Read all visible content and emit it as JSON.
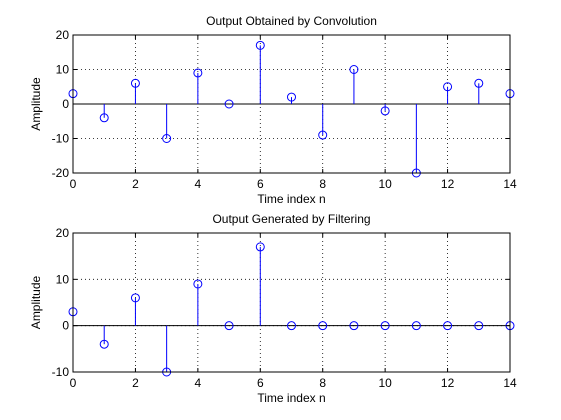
{
  "chart_data": [
    {
      "type": "stem",
      "title": "Output Obtained by Convolution",
      "xlabel": "Time index n",
      "ylabel": "Amplitude",
      "xlim": [
        0,
        14
      ],
      "ylim": [
        -20,
        20
      ],
      "xticks": [
        0,
        2,
        4,
        6,
        8,
        10,
        12,
        14
      ],
      "yticks": [
        -20,
        -10,
        0,
        10,
        20
      ],
      "grid": true,
      "marker": "circle",
      "color": "#0000ff",
      "x": [
        0,
        1,
        2,
        3,
        4,
        5,
        6,
        7,
        8,
        9,
        10,
        11,
        12,
        13,
        14
      ],
      "y": [
        3,
        -4,
        6,
        -10,
        9,
        0,
        17,
        2,
        -9,
        10,
        -2,
        -20,
        5,
        6,
        3
      ]
    },
    {
      "type": "stem",
      "title": "Output Generated by Filtering",
      "xlabel": "Time index n",
      "ylabel": "Amplitude",
      "xlim": [
        0,
        14
      ],
      "ylim": [
        -10,
        20
      ],
      "xticks": [
        0,
        2,
        4,
        6,
        8,
        10,
        12,
        14
      ],
      "yticks": [
        -10,
        0,
        10,
        20
      ],
      "grid": true,
      "marker": "circle",
      "color": "#0000ff",
      "x": [
        0,
        1,
        2,
        3,
        4,
        5,
        6,
        7,
        8,
        9,
        10,
        11,
        12,
        13,
        14
      ],
      "y": [
        3,
        -4,
        6,
        -10,
        9,
        0,
        17,
        0,
        0,
        0,
        0,
        0,
        0,
        0,
        0
      ]
    }
  ]
}
